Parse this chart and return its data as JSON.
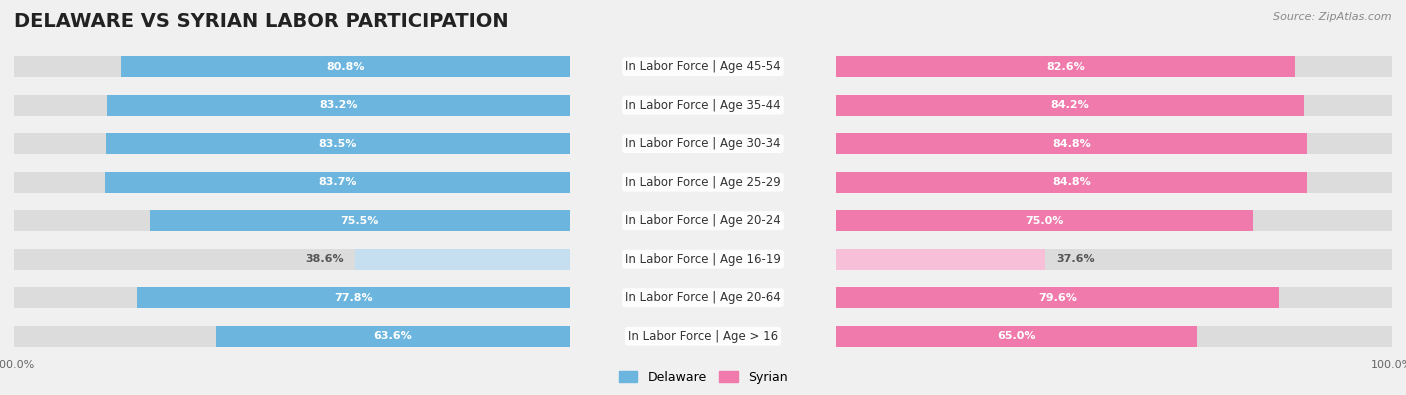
{
  "title": "DELAWARE VS SYRIAN LABOR PARTICIPATION",
  "source": "Source: ZipAtlas.com",
  "categories": [
    "In Labor Force | Age > 16",
    "In Labor Force | Age 20-64",
    "In Labor Force | Age 16-19",
    "In Labor Force | Age 20-24",
    "In Labor Force | Age 25-29",
    "In Labor Force | Age 30-34",
    "In Labor Force | Age 35-44",
    "In Labor Force | Age 45-54"
  ],
  "delaware_values": [
    63.6,
    77.8,
    38.6,
    75.5,
    83.7,
    83.5,
    83.2,
    80.8
  ],
  "syrian_values": [
    65.0,
    79.6,
    37.6,
    75.0,
    84.8,
    84.8,
    84.2,
    82.6
  ],
  "delaware_color_dark": "#6BB5DE",
  "delaware_color_light": "#C5DFF0",
  "syrian_color_dark": "#F07AAB",
  "syrian_color_light": "#F8C0D8",
  "background_color": "#f0f0f0",
  "bar_bg_color": "#dcdcdc",
  "title_fontsize": 14,
  "label_fontsize": 8.5,
  "value_fontsize": 8,
  "axis_fontsize": 8,
  "legend_fontsize": 9
}
